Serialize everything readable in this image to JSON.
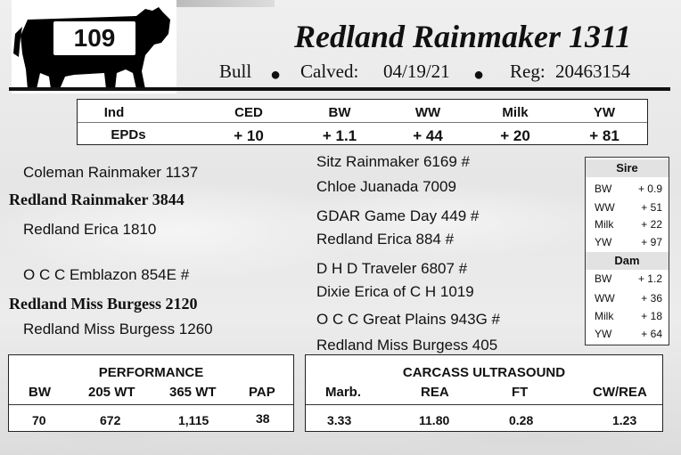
{
  "header": {
    "number": "109",
    "title": "Redland Rainmaker 1311",
    "sex": "Bull",
    "calved_label": "Calved:",
    "calved_value": "04/19/21",
    "reg_label": "Reg:",
    "reg_value": "20463154"
  },
  "epds": {
    "row_label_top": "Ind",
    "row_label_bottom": "EPDs",
    "headers": [
      "CED",
      "BW",
      "WW",
      "Milk",
      "YW"
    ],
    "values": [
      "+ 10",
      "+ 1.1",
      "+ 44",
      "+ 20",
      "+ 81"
    ]
  },
  "pedigree": {
    "sire": "Redland Rainmaker 3844",
    "sire_sire": "Coleman Rainmaker 1137",
    "sire_dam": "Redland Erica 1810",
    "dam": "Redland Miss Burgess 2120",
    "dam_sire": "O C C Emblazon 854E #",
    "dam_dam": "Redland Miss Burgess 1260",
    "gg": [
      "Sitz Rainmaker 6169 #",
      "Chloe Juanada 7009",
      "GDAR Game Day 449 #",
      "Redland Erica 884 #",
      "D H D Traveler 6807 #",
      "Dixie Erica of C H 1019",
      "O C C Great Plains 943G #",
      "Redland Miss Burgess 405"
    ]
  },
  "parent_epds": {
    "sire_title": "Sire",
    "sire": [
      {
        "label": "BW",
        "value": "+ 0.9"
      },
      {
        "label": "WW",
        "value": "+ 51"
      },
      {
        "label": "Milk",
        "value": "+ 22"
      },
      {
        "label": "YW",
        "value": "+ 97"
      }
    ],
    "dam_title": "Dam",
    "dam": [
      {
        "label": "BW",
        "value": "+ 1.2"
      },
      {
        "label": "WW",
        "value": "+ 36"
      },
      {
        "label": "Milk",
        "value": "+ 18"
      },
      {
        "label": "YW",
        "value": "+ 64"
      }
    ]
  },
  "performance": {
    "title": "PERFORMANCE",
    "headers": [
      "BW",
      "205 WT",
      "365 WT",
      "PAP"
    ],
    "values": [
      "70",
      "672",
      "1,115",
      "38"
    ]
  },
  "carcass": {
    "title": "CARCASS ULTRASOUND",
    "headers": [
      "Marb.",
      "REA",
      "FT",
      "CW/REA"
    ],
    "values": [
      "3.33",
      "11.80",
      "0.28",
      "1.23"
    ]
  }
}
